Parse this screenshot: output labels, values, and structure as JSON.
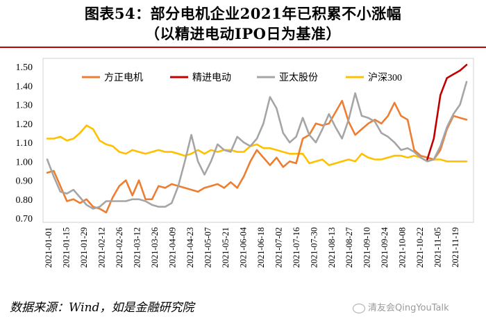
{
  "header": {
    "title": "图表54：部分电机企业2021年已积累不小涨幅",
    "subtitle": "（以精进电动IPO日为基准）"
  },
  "footer": {
    "source": "数据来源：Wind，如是金融研究院",
    "watermark": "清友会QingYouTalk"
  },
  "chart_data": {
    "type": "line",
    "ylim": [
      0.7,
      1.5
    ],
    "yticks": [
      "1.50",
      "1.40",
      "1.30",
      "1.20",
      "1.10",
      "1.00",
      "0.90",
      "0.80",
      "0.70"
    ],
    "xticks": [
      "2021-01-01",
      "2021-01-15",
      "2021-01-29",
      "2021-02-12",
      "2021-02-26",
      "2021-03-12",
      "2021-03-26",
      "2021-04-09",
      "2021-04-23",
      "2021-05-07",
      "2021-05-21",
      "2021-06-04",
      "2021-06-18",
      "2021-07-02",
      "2021-07-16",
      "2021-07-30",
      "2021-08-13",
      "2021-08-27",
      "2021-09-10",
      "2021-09-24",
      "2021-10-08",
      "2021-10-22",
      "2021-11-05",
      "2021-11-19"
    ],
    "legend_position": "top",
    "series": [
      {
        "name": "方正电机",
        "color": "#ed7d31",
        "values": [
          [
            0,
            0.94
          ],
          [
            1,
            0.95
          ],
          [
            2,
            0.87
          ],
          [
            3,
            0.79
          ],
          [
            4,
            0.8
          ],
          [
            5,
            0.78
          ],
          [
            6,
            0.8
          ],
          [
            7,
            0.76
          ],
          [
            8,
            0.75
          ],
          [
            9,
            0.73
          ],
          [
            10,
            0.81
          ],
          [
            11,
            0.87
          ],
          [
            12,
            0.9
          ],
          [
            13,
            0.82
          ],
          [
            14,
            0.9
          ],
          [
            15,
            0.8
          ],
          [
            16,
            0.8
          ],
          [
            17,
            0.87
          ],
          [
            18,
            0.86
          ],
          [
            19,
            0.88
          ],
          [
            20,
            0.87
          ],
          [
            21,
            0.86
          ],
          [
            22,
            0.85
          ],
          [
            23,
            0.84
          ],
          [
            24,
            0.86
          ],
          [
            25,
            0.87
          ],
          [
            26,
            0.88
          ],
          [
            27,
            0.86
          ],
          [
            28,
            0.89
          ],
          [
            29,
            0.86
          ],
          [
            30,
            0.92
          ],
          [
            31,
            1.0
          ],
          [
            32,
            1.06
          ],
          [
            33,
            1.02
          ],
          [
            34,
            0.98
          ],
          [
            35,
            1.02
          ],
          [
            36,
            0.97
          ],
          [
            37,
            1.0
          ],
          [
            38,
            0.99
          ],
          [
            39,
            1.12
          ],
          [
            40,
            1.14
          ],
          [
            41,
            1.2
          ],
          [
            42,
            1.19
          ],
          [
            43,
            1.2
          ],
          [
            44,
            1.26
          ],
          [
            45,
            1.32
          ],
          [
            46,
            1.21
          ],
          [
            47,
            1.14
          ],
          [
            48,
            1.17
          ],
          [
            49,
            1.2
          ],
          [
            50,
            1.22
          ],
          [
            51,
            1.2
          ],
          [
            52,
            1.24
          ],
          [
            53,
            1.31
          ],
          [
            54,
            1.24
          ],
          [
            55,
            1.22
          ],
          [
            56,
            1.06
          ],
          [
            57,
            1.03
          ],
          [
            58,
            1.02
          ],
          [
            59,
            1.01
          ],
          [
            60,
            1.06
          ],
          [
            61,
            1.17
          ],
          [
            62,
            1.24
          ],
          [
            63,
            1.23
          ],
          [
            64,
            1.22
          ]
        ]
      },
      {
        "name": "精进电动",
        "color": "#c00000",
        "values": [
          [
            58,
            1.01
          ],
          [
            59,
            1.12
          ],
          [
            60,
            1.35
          ],
          [
            61,
            1.44
          ],
          [
            62,
            1.46
          ],
          [
            63,
            1.48
          ],
          [
            64,
            1.51
          ]
        ]
      },
      {
        "name": "亚太股份",
        "color": "#a5a5a5",
        "values": [
          [
            0,
            1.01
          ],
          [
            1,
            0.92
          ],
          [
            2,
            0.84
          ],
          [
            3,
            0.83
          ],
          [
            4,
            0.85
          ],
          [
            5,
            0.81
          ],
          [
            6,
            0.77
          ],
          [
            7,
            0.75
          ],
          [
            8,
            0.76
          ],
          [
            9,
            0.79
          ],
          [
            10,
            0.79
          ],
          [
            11,
            0.79
          ],
          [
            12,
            0.79
          ],
          [
            13,
            0.8
          ],
          [
            14,
            0.8
          ],
          [
            15,
            0.79
          ],
          [
            16,
            0.77
          ],
          [
            17,
            0.76
          ],
          [
            18,
            0.76
          ],
          [
            19,
            0.78
          ],
          [
            20,
            0.87
          ],
          [
            21,
            1.0
          ],
          [
            22,
            1.14
          ],
          [
            23,
            1.0
          ],
          [
            24,
            0.93
          ],
          [
            25,
            1.0
          ],
          [
            26,
            1.09
          ],
          [
            27,
            1.06
          ],
          [
            28,
            1.05
          ],
          [
            29,
            1.13
          ],
          [
            30,
            1.1
          ],
          [
            31,
            1.08
          ],
          [
            32,
            1.12
          ],
          [
            33,
            1.2
          ],
          [
            34,
            1.34
          ],
          [
            35,
            1.28
          ],
          [
            36,
            1.15
          ],
          [
            37,
            1.1
          ],
          [
            38,
            1.13
          ],
          [
            39,
            1.23
          ],
          [
            40,
            1.14
          ],
          [
            41,
            1.1
          ],
          [
            42,
            1.17
          ],
          [
            43,
            1.25
          ],
          [
            44,
            1.18
          ],
          [
            45,
            1.12
          ],
          [
            46,
            1.22
          ],
          [
            47,
            1.36
          ],
          [
            48,
            1.24
          ],
          [
            49,
            1.23
          ],
          [
            50,
            1.21
          ],
          [
            51,
            1.15
          ],
          [
            52,
            1.13
          ],
          [
            53,
            1.1
          ],
          [
            54,
            1.06
          ],
          [
            55,
            1.07
          ],
          [
            56,
            1.05
          ],
          [
            57,
            1.02
          ],
          [
            58,
            1.0
          ],
          [
            59,
            1.01
          ],
          [
            60,
            1.08
          ],
          [
            61,
            1.18
          ],
          [
            62,
            1.25
          ],
          [
            63,
            1.3
          ],
          [
            64,
            1.42
          ]
        ]
      },
      {
        "name": "沪深300",
        "color": "#ffc000",
        "values": [
          [
            0,
            1.12
          ],
          [
            1,
            1.12
          ],
          [
            2,
            1.13
          ],
          [
            3,
            1.11
          ],
          [
            4,
            1.12
          ],
          [
            5,
            1.15
          ],
          [
            6,
            1.19
          ],
          [
            7,
            1.17
          ],
          [
            8,
            1.11
          ],
          [
            9,
            1.09
          ],
          [
            10,
            1.08
          ],
          [
            11,
            1.05
          ],
          [
            12,
            1.04
          ],
          [
            13,
            1.06
          ],
          [
            14,
            1.05
          ],
          [
            15,
            1.04
          ],
          [
            16,
            1.05
          ],
          [
            17,
            1.06
          ],
          [
            18,
            1.05
          ],
          [
            19,
            1.05
          ],
          [
            20,
            1.04
          ],
          [
            21,
            1.03
          ],
          [
            22,
            1.04
          ],
          [
            23,
            1.06
          ],
          [
            24,
            1.04
          ],
          [
            25,
            1.06
          ],
          [
            26,
            1.05
          ],
          [
            27,
            1.06
          ],
          [
            28,
            1.06
          ],
          [
            29,
            1.05
          ],
          [
            30,
            1.05
          ],
          [
            31,
            1.08
          ],
          [
            32,
            1.09
          ],
          [
            33,
            1.07
          ],
          [
            34,
            1.07
          ],
          [
            35,
            1.06
          ],
          [
            36,
            1.05
          ],
          [
            37,
            1.04
          ],
          [
            38,
            1.04
          ],
          [
            39,
            1.04
          ],
          [
            40,
            0.99
          ],
          [
            41,
            1.0
          ],
          [
            42,
            1.01
          ],
          [
            43,
            0.98
          ],
          [
            44,
            0.99
          ],
          [
            45,
            1.0
          ],
          [
            46,
            1.01
          ],
          [
            47,
            1.0
          ],
          [
            48,
            1.04
          ],
          [
            49,
            1.02
          ],
          [
            50,
            1.01
          ],
          [
            51,
            1.01
          ],
          [
            52,
            1.02
          ],
          [
            53,
            1.03
          ],
          [
            54,
            1.03
          ],
          [
            55,
            1.02
          ],
          [
            56,
            1.03
          ],
          [
            57,
            1.02
          ],
          [
            58,
            1.0
          ],
          [
            59,
            1.01
          ],
          [
            60,
            1.01
          ],
          [
            61,
            1.0
          ],
          [
            62,
            1.0
          ],
          [
            63,
            1.0
          ],
          [
            64,
            1.0
          ]
        ]
      }
    ]
  }
}
